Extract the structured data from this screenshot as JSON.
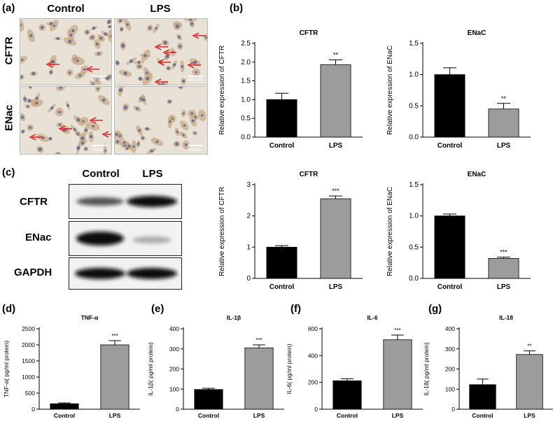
{
  "colors": {
    "control": "#000000",
    "lps": "#9c9c9c",
    "arrow": "#e0141e"
  },
  "panel_a": {
    "letter": "(a)",
    "col_headers": [
      "Control",
      "LPS"
    ],
    "row_labels": [
      "CFTR",
      "ENac"
    ],
    "scale_bar": "100 μm"
  },
  "panel_b": {
    "letter": "(b)"
  },
  "panel_c": {
    "letter": "(c)",
    "col_headers": [
      "Control",
      "LPS"
    ],
    "row_labels": [
      "CFTR",
      "ENac",
      "GAPDH"
    ]
  },
  "panel_d": {
    "letter": "(d)"
  },
  "panel_e": {
    "letter": "(e)"
  },
  "panel_f": {
    "letter": "(f)"
  },
  "panel_g": {
    "letter": "(g)"
  },
  "chart_data": [
    {
      "id": "b1",
      "type": "bar",
      "title": "CFTR",
      "categories": [
        "Control",
        "LPS"
      ],
      "values": [
        1.0,
        1.93
      ],
      "errors": [
        0.17,
        0.13
      ],
      "ylabel": "Relative expression of CFTR",
      "ylim": [
        0,
        2.5
      ],
      "yticks": [
        "0.0",
        "0.5",
        "1.0",
        "1.5",
        "2.0",
        "2.5"
      ],
      "tickvals": [
        0,
        0.5,
        1,
        1.5,
        2,
        2.5
      ],
      "sig": "**"
    },
    {
      "id": "b2",
      "type": "bar",
      "title": "ENaC",
      "categories": [
        "Control",
        "LPS"
      ],
      "values": [
        1.0,
        0.45
      ],
      "errors": [
        0.11,
        0.09
      ],
      "ylabel": "Relative expression of ENaC",
      "ylim": [
        0,
        1.5
      ],
      "yticks": [
        "0.0",
        "0.5",
        "1.0",
        "1.5"
      ],
      "tickvals": [
        0,
        0.5,
        1,
        1.5
      ],
      "sig": "**"
    },
    {
      "id": "c1",
      "type": "bar",
      "title": "CFTR",
      "categories": [
        "Control",
        "LPS"
      ],
      "values": [
        1.0,
        2.55
      ],
      "errors": [
        0.05,
        0.09
      ],
      "ylabel": "Relative expression of CFTR",
      "ylim": [
        0,
        3
      ],
      "yticks": [
        "0",
        "1",
        "2",
        "3"
      ],
      "tickvals": [
        0,
        1,
        2,
        3
      ],
      "sig": "***"
    },
    {
      "id": "c2",
      "type": "bar",
      "title": "ENaC",
      "categories": [
        "Control",
        "LPS"
      ],
      "values": [
        1.0,
        0.32
      ],
      "errors": [
        0.03,
        0.02
      ],
      "ylabel": "Relative expression of ENaC",
      "ylim": [
        0,
        1.5
      ],
      "yticks": [
        "0.0",
        "0.5",
        "1.0",
        "1.5"
      ],
      "tickvals": [
        0,
        0.5,
        1,
        1.5
      ],
      "sig": "***"
    },
    {
      "id": "d",
      "type": "bar",
      "title": "TNF-α",
      "categories": [
        "Control",
        "LPS"
      ],
      "values": [
        170,
        2000
      ],
      "errors": [
        25,
        130
      ],
      "ylabel": "TNF-α( pg/ml protein)",
      "ylim": [
        0,
        2500
      ],
      "yticks": [
        "0",
        "500",
        "1000",
        "1500",
        "2000",
        "2500"
      ],
      "tickvals": [
        0,
        500,
        1000,
        1500,
        2000,
        2500
      ],
      "sig": "***"
    },
    {
      "id": "e",
      "type": "bar",
      "title": "IL-1β",
      "categories": [
        "Control",
        "LPS"
      ],
      "values": [
        98,
        305
      ],
      "errors": [
        6,
        15
      ],
      "ylabel": "IL-1β( pg/ml protein)",
      "ylim": [
        0,
        400
      ],
      "yticks": [
        "0",
        "100",
        "200",
        "300",
        "400"
      ],
      "tickvals": [
        0,
        100,
        200,
        300,
        400
      ],
      "sig": "***"
    },
    {
      "id": "f",
      "type": "bar",
      "title": "IL-6",
      "categories": [
        "Control",
        "LPS"
      ],
      "values": [
        212,
        518
      ],
      "errors": [
        15,
        35
      ],
      "ylabel": "IL-6( pg/ml protein)",
      "ylim": [
        0,
        600
      ],
      "yticks": [
        "0",
        "200",
        "400",
        "600"
      ],
      "tickvals": [
        0,
        200,
        400,
        600
      ],
      "sig": "***"
    },
    {
      "id": "g",
      "type": "bar",
      "title": "IL-18",
      "categories": [
        "Control",
        "LPS"
      ],
      "values": [
        122,
        272
      ],
      "errors": [
        28,
        18
      ],
      "ylabel": "IL-18( pg/ml protein)",
      "ylim": [
        0,
        400
      ],
      "yticks": [
        "0",
        "100",
        "200",
        "300",
        "400"
      ],
      "tickvals": [
        0,
        100,
        200,
        300,
        400
      ],
      "sig": "**"
    }
  ]
}
